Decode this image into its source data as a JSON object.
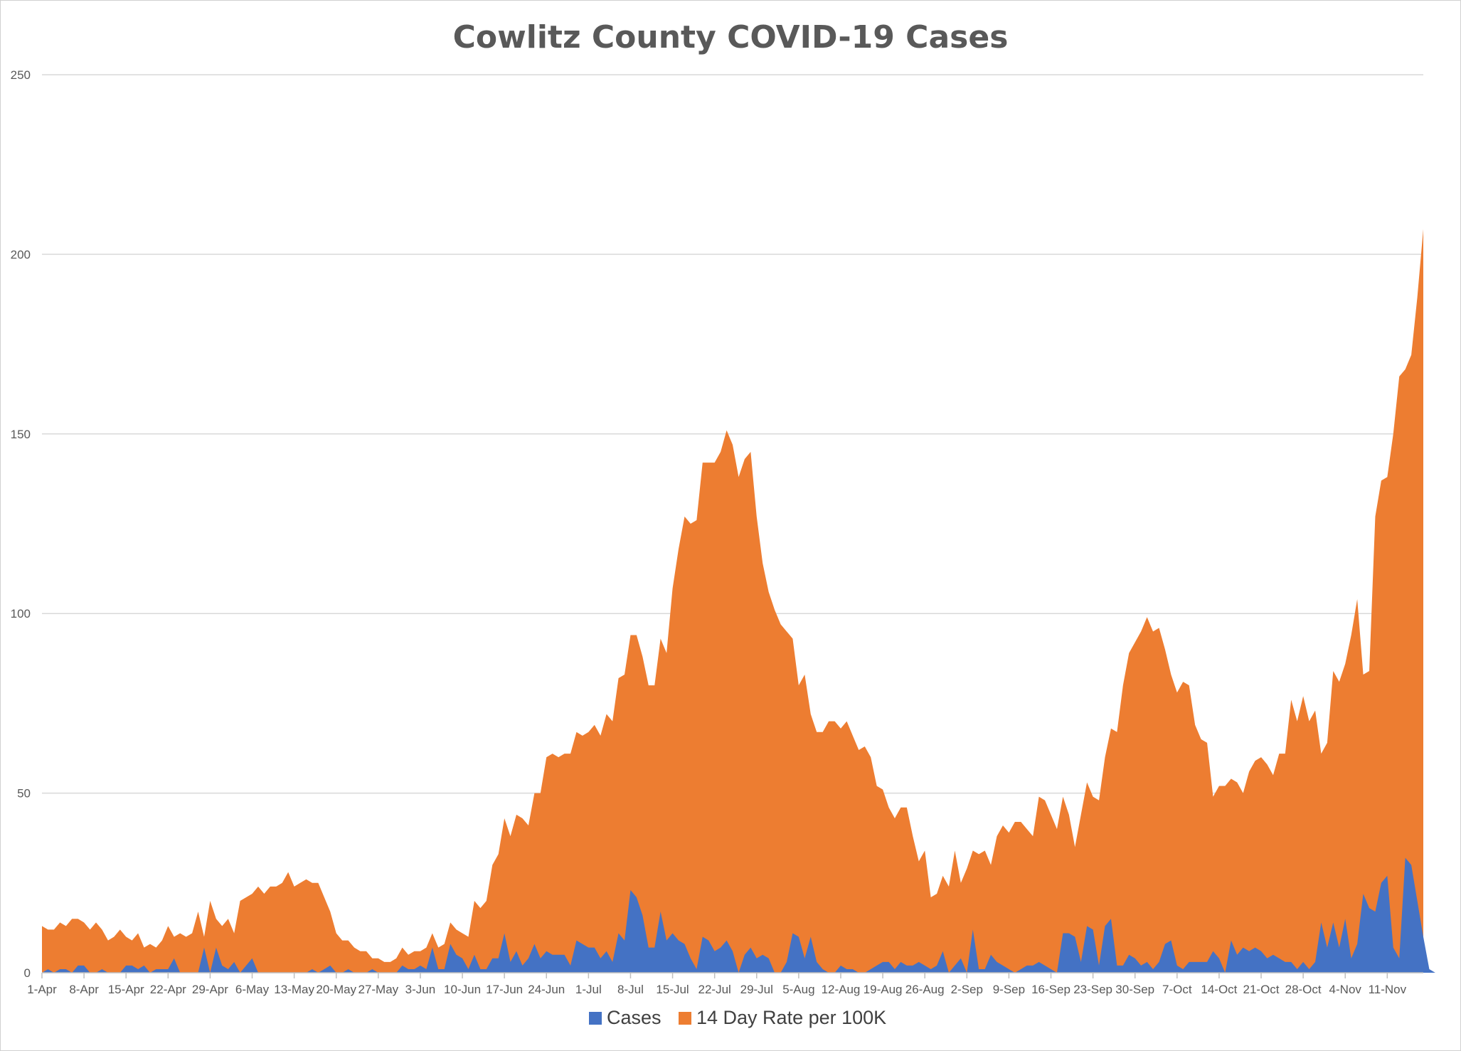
{
  "chart_data": {
    "type": "area",
    "title": "Cowlitz County COVID-19 Cases",
    "xlabel": "",
    "ylabel": "",
    "ylim": [
      0,
      250
    ],
    "y_ticks": [
      "0",
      "50",
      "100",
      "150",
      "200",
      "250"
    ],
    "grid": "horizontal",
    "legend_position": "bottom",
    "x_tick_labels": [
      "1-Apr",
      "8-Apr",
      "15-Apr",
      "22-Apr",
      "29-Apr",
      "6-May",
      "13-May",
      "20-May",
      "27-May",
      "3-Jun",
      "10-Jun",
      "17-Jun",
      "24-Jun",
      "1-Jul",
      "8-Jul",
      "15-Jul",
      "22-Jul",
      "29-Jul",
      "5-Aug",
      "12-Aug",
      "19-Aug",
      "26-Aug",
      "2-Sep",
      "9-Sep",
      "16-Sep",
      "23-Sep",
      "30-Sep",
      "7-Oct",
      "14-Oct",
      "21-Oct",
      "28-Oct",
      "4-Nov",
      "11-Nov"
    ],
    "x_start_date": "1-Apr",
    "series": [
      {
        "name": "14 Day Rate per 100K",
        "color": "#ED7D31",
        "values": [
          13,
          12,
          12,
          14,
          13,
          15,
          15,
          14,
          12,
          14,
          12,
          9,
          10,
          12,
          10,
          9,
          11,
          7,
          8,
          7,
          9,
          13,
          10,
          11,
          10,
          11,
          17,
          10,
          20,
          15,
          13,
          15,
          11,
          20,
          21,
          22,
          24,
          22,
          24,
          24,
          25,
          28,
          24,
          25,
          26,
          25,
          25,
          21,
          17,
          11,
          9,
          9,
          7,
          6,
          6,
          4,
          4,
          3,
          3,
          4,
          7,
          5,
          6,
          6,
          7,
          11,
          7,
          8,
          14,
          12,
          11,
          10,
          20,
          18,
          20,
          30,
          33,
          43,
          38,
          44,
          43,
          41,
          50,
          50,
          60,
          61,
          60,
          61,
          61,
          67,
          66,
          67,
          69,
          66,
          72,
          70,
          82,
          83,
          94,
          94,
          88,
          80,
          80,
          93,
          89,
          107,
          118,
          127,
          125,
          126,
          142,
          142,
          142,
          145,
          151,
          147,
          138,
          143,
          145,
          127,
          114,
          106,
          101,
          97,
          95,
          93,
          80,
          83,
          72,
          67,
          67,
          70,
          70,
          68,
          70,
          66,
          62,
          63,
          60,
          52,
          51,
          46,
          43,
          46,
          46,
          38,
          31,
          34,
          21,
          22,
          27,
          24,
          34,
          25,
          29,
          34,
          33,
          34,
          30,
          38,
          41,
          39,
          42,
          42,
          40,
          38,
          49,
          48,
          44,
          40,
          49,
          44,
          35,
          44,
          53,
          49,
          48,
          60,
          68,
          67,
          80,
          89,
          92,
          95,
          99,
          95,
          96,
          90,
          83,
          78,
          81,
          80,
          69,
          65,
          64,
          49,
          52,
          52,
          54,
          53,
          50,
          56,
          59,
          60,
          58,
          55,
          61,
          61,
          76,
          70,
          77,
          70,
          73,
          61,
          64,
          84,
          81,
          86,
          94,
          104,
          83,
          84,
          127,
          137,
          138,
          150,
          166,
          168,
          172,
          188,
          207
        ]
      },
      {
        "name": "Cases",
        "color": "#4472C4",
        "values": [
          0,
          1,
          0,
          1,
          1,
          0,
          2,
          2,
          0,
          0,
          1,
          0,
          0,
          0,
          2,
          2,
          1,
          2,
          0,
          1,
          1,
          1,
          4,
          0,
          0,
          0,
          0,
          7,
          0,
          7,
          2,
          1,
          3,
          0,
          2,
          4,
          0,
          0,
          0,
          0,
          0,
          0,
          0,
          0,
          0,
          1,
          0,
          1,
          2,
          0,
          0,
          1,
          0,
          0,
          0,
          1,
          0,
          0,
          0,
          0,
          2,
          1,
          1,
          2,
          1,
          7,
          1,
          1,
          8,
          5,
          4,
          1,
          5,
          1,
          1,
          4,
          4,
          11,
          3,
          6,
          2,
          4,
          8,
          4,
          6,
          5,
          5,
          5,
          2,
          9,
          8,
          7,
          7,
          4,
          6,
          3,
          11,
          9,
          23,
          21,
          16,
          7,
          7,
          17,
          9,
          11,
          9,
          8,
          4,
          1,
          10,
          9,
          6,
          7,
          9,
          6,
          0,
          5,
          7,
          4,
          5,
          4,
          0,
          0,
          3,
          11,
          10,
          4,
          10,
          3,
          1,
          0,
          0,
          2,
          1,
          1,
          0,
          0,
          1,
          2,
          3,
          3,
          1,
          3,
          2,
          2,
          3,
          2,
          1,
          2,
          6,
          0,
          2,
          4,
          0,
          12,
          1,
          1,
          5,
          3,
          2,
          1,
          0,
          1,
          2,
          2,
          3,
          2,
          1,
          0,
          11,
          11,
          10,
          3,
          13,
          12,
          2,
          13,
          15,
          2,
          2,
          5,
          4,
          2,
          3,
          1,
          3,
          8,
          9,
          2,
          1,
          3,
          3,
          3,
          3,
          6,
          4,
          0,
          9,
          5,
          7,
          6,
          7,
          6,
          4,
          5,
          4,
          3,
          3,
          1,
          3,
          1,
          3,
          14,
          7,
          14,
          7,
          15,
          4,
          8,
          22,
          18,
          17,
          25,
          27,
          7,
          4,
          32,
          30,
          20,
          10,
          1,
          0,
          0,
          0
        ]
      }
    ]
  }
}
